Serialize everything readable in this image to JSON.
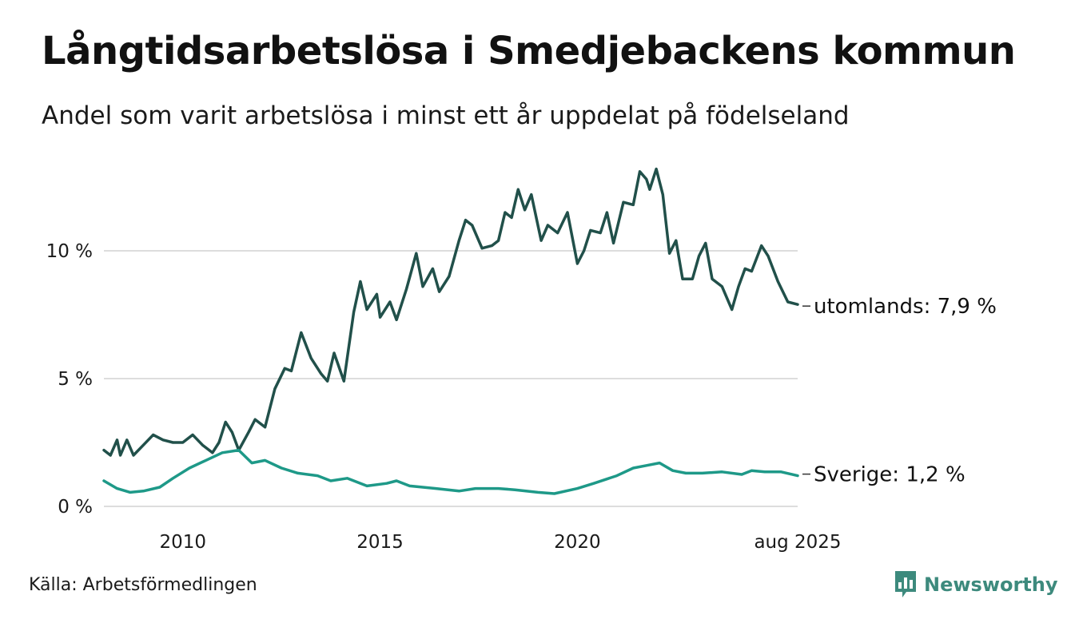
{
  "header": {
    "title": "Långtidsarbetslösa i Smedjebackens kommun",
    "subtitle": "Andel som varit arbetslösa i minst ett år uppdelat på födelseland"
  },
  "footer": {
    "source": "Källa: Arbetsförmedlingen",
    "brand": "Newsworthy"
  },
  "colors": {
    "utomlands": "#21504a",
    "sverige": "#1e9988",
    "grid": "#dddddd",
    "brand": "#3d8a7d"
  },
  "icons": {
    "brand": "bar-chart-speech-bubble-icon"
  },
  "chart_data": {
    "type": "line",
    "title": "Långtidsarbetslösa i Smedjebackens kommun",
    "subtitle": "Andel som varit arbetslösa i minst ett år uppdelat på födelseland",
    "xlabel": "",
    "ylabel": "",
    "x_range": [
      "2008-01",
      "2025-08"
    ],
    "ylim": [
      0,
      13.5
    ],
    "grid": true,
    "legend": "end-of-line labels",
    "y_ticks": [
      {
        "value": 0,
        "label": "0 %"
      },
      {
        "value": 5,
        "label": "5 %"
      },
      {
        "value": 10,
        "label": "10 %"
      }
    ],
    "x_ticks": [
      {
        "date": "2010-01",
        "label": "2010"
      },
      {
        "date": "2015-01",
        "label": "2015"
      },
      {
        "date": "2020-01",
        "label": "2020"
      },
      {
        "date": "2025-08",
        "label": "aug 2025"
      }
    ],
    "series": [
      {
        "key": "utomlands",
        "end_label": "utomlands: 7,9 %",
        "points": [
          [
            "2008-01",
            2.2
          ],
          [
            "2008-03",
            2.0
          ],
          [
            "2008-05",
            2.6
          ],
          [
            "2008-06",
            2.0
          ],
          [
            "2008-08",
            2.6
          ],
          [
            "2008-10",
            2.0
          ],
          [
            "2009-01",
            2.4
          ],
          [
            "2009-04",
            2.8
          ],
          [
            "2009-07",
            2.6
          ],
          [
            "2009-10",
            2.5
          ],
          [
            "2010-01",
            2.5
          ],
          [
            "2010-04",
            2.8
          ],
          [
            "2010-07",
            2.4
          ],
          [
            "2010-10",
            2.1
          ],
          [
            "2010-12",
            2.5
          ],
          [
            "2011-02",
            3.3
          ],
          [
            "2011-04",
            2.9
          ],
          [
            "2011-06",
            2.2
          ],
          [
            "2011-09",
            2.9
          ],
          [
            "2011-11",
            3.4
          ],
          [
            "2012-02",
            3.1
          ],
          [
            "2012-05",
            4.6
          ],
          [
            "2012-08",
            5.4
          ],
          [
            "2012-10",
            5.3
          ],
          [
            "2013-01",
            6.8
          ],
          [
            "2013-04",
            5.8
          ],
          [
            "2013-07",
            5.2
          ],
          [
            "2013-09",
            4.9
          ],
          [
            "2013-11",
            6.0
          ],
          [
            "2014-02",
            4.9
          ],
          [
            "2014-05",
            7.6
          ],
          [
            "2014-07",
            8.8
          ],
          [
            "2014-09",
            7.7
          ],
          [
            "2014-12",
            8.3
          ],
          [
            "2015-01",
            7.4
          ],
          [
            "2015-04",
            8.0
          ],
          [
            "2015-06",
            7.3
          ],
          [
            "2015-09",
            8.5
          ],
          [
            "2015-12",
            9.9
          ],
          [
            "2016-02",
            8.6
          ],
          [
            "2016-05",
            9.3
          ],
          [
            "2016-07",
            8.4
          ],
          [
            "2016-10",
            9.0
          ],
          [
            "2017-01",
            10.4
          ],
          [
            "2017-03",
            11.2
          ],
          [
            "2017-05",
            11.0
          ],
          [
            "2017-08",
            10.1
          ],
          [
            "2017-11",
            10.2
          ],
          [
            "2018-01",
            10.4
          ],
          [
            "2018-03",
            11.5
          ],
          [
            "2018-05",
            11.3
          ],
          [
            "2018-07",
            12.4
          ],
          [
            "2018-09",
            11.6
          ],
          [
            "2018-11",
            12.2
          ],
          [
            "2019-02",
            10.4
          ],
          [
            "2019-04",
            11.0
          ],
          [
            "2019-07",
            10.7
          ],
          [
            "2019-10",
            11.5
          ],
          [
            "2020-01",
            9.5
          ],
          [
            "2020-03",
            10.0
          ],
          [
            "2020-05",
            10.8
          ],
          [
            "2020-08",
            10.7
          ],
          [
            "2020-10",
            11.5
          ],
          [
            "2020-12",
            10.3
          ],
          [
            "2021-03",
            11.9
          ],
          [
            "2021-06",
            11.8
          ],
          [
            "2021-08",
            13.1
          ],
          [
            "2021-10",
            12.8
          ],
          [
            "2021-11",
            12.4
          ],
          [
            "2022-01",
            13.2
          ],
          [
            "2022-03",
            12.2
          ],
          [
            "2022-05",
            9.9
          ],
          [
            "2022-07",
            10.4
          ],
          [
            "2022-09",
            8.9
          ],
          [
            "2022-12",
            8.9
          ],
          [
            "2023-02",
            9.8
          ],
          [
            "2023-04",
            10.3
          ],
          [
            "2023-06",
            8.9
          ],
          [
            "2023-09",
            8.6
          ],
          [
            "2023-12",
            7.7
          ],
          [
            "2024-02",
            8.6
          ],
          [
            "2024-04",
            9.3
          ],
          [
            "2024-06",
            9.2
          ],
          [
            "2024-09",
            10.2
          ],
          [
            "2024-11",
            9.8
          ],
          [
            "2025-02",
            8.8
          ],
          [
            "2025-05",
            8.0
          ],
          [
            "2025-08",
            7.9
          ]
        ]
      },
      {
        "key": "sverige",
        "end_label": "Sverige: 1,2 %",
        "points": [
          [
            "2008-01",
            1.0
          ],
          [
            "2008-05",
            0.7
          ],
          [
            "2008-09",
            0.55
          ],
          [
            "2009-01",
            0.6
          ],
          [
            "2009-06",
            0.75
          ],
          [
            "2009-10",
            1.1
          ],
          [
            "2010-03",
            1.5
          ],
          [
            "2010-08",
            1.8
          ],
          [
            "2011-01",
            2.1
          ],
          [
            "2011-06",
            2.2
          ],
          [
            "2011-10",
            1.7
          ],
          [
            "2012-02",
            1.8
          ],
          [
            "2012-07",
            1.5
          ],
          [
            "2012-12",
            1.3
          ],
          [
            "2013-06",
            1.2
          ],
          [
            "2013-10",
            1.0
          ],
          [
            "2014-03",
            1.1
          ],
          [
            "2014-09",
            0.8
          ],
          [
            "2015-03",
            0.9
          ],
          [
            "2015-06",
            1.0
          ],
          [
            "2015-10",
            0.8
          ],
          [
            "2016-06",
            0.7
          ],
          [
            "2017-01",
            0.6
          ],
          [
            "2017-06",
            0.7
          ],
          [
            "2018-01",
            0.7
          ],
          [
            "2018-06",
            0.65
          ],
          [
            "2019-01",
            0.55
          ],
          [
            "2019-06",
            0.5
          ],
          [
            "2020-01",
            0.7
          ],
          [
            "2020-06",
            0.9
          ],
          [
            "2021-01",
            1.2
          ],
          [
            "2021-06",
            1.5
          ],
          [
            "2021-10",
            1.6
          ],
          [
            "2022-02",
            1.7
          ],
          [
            "2022-06",
            1.4
          ],
          [
            "2022-10",
            1.3
          ],
          [
            "2023-03",
            1.3
          ],
          [
            "2023-09",
            1.35
          ],
          [
            "2024-03",
            1.25
          ],
          [
            "2024-06",
            1.4
          ],
          [
            "2024-10",
            1.35
          ],
          [
            "2025-03",
            1.35
          ],
          [
            "2025-08",
            1.2
          ]
        ]
      }
    ]
  }
}
